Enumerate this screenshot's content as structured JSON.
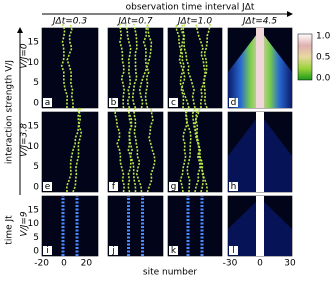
{
  "figure": {
    "title": "observation time interval JΔt",
    "y_axis_label": "interaction strength V/J",
    "time_label": "time Jt",
    "x_axis_label": "site number",
    "columns": [
      "JΔt=0.3",
      "JΔt=0.7",
      "JΔt=1.0",
      "JΔt=4.5"
    ],
    "rows": [
      "V/J=0",
      "V/J=3.8",
      "V/J=9"
    ],
    "panels": [
      "a",
      "b",
      "c",
      "d",
      "e",
      "f",
      "g",
      "h",
      "i",
      "j",
      "k",
      "l"
    ],
    "yticks": [
      15,
      10,
      5,
      0
    ],
    "xticks_narrow": [
      -20,
      0,
      20
    ],
    "xticks_wide": [
      -30,
      0,
      30
    ],
    "colorbar_ticks": [
      "1.0",
      "0.5",
      "0.0"
    ]
  }
}
